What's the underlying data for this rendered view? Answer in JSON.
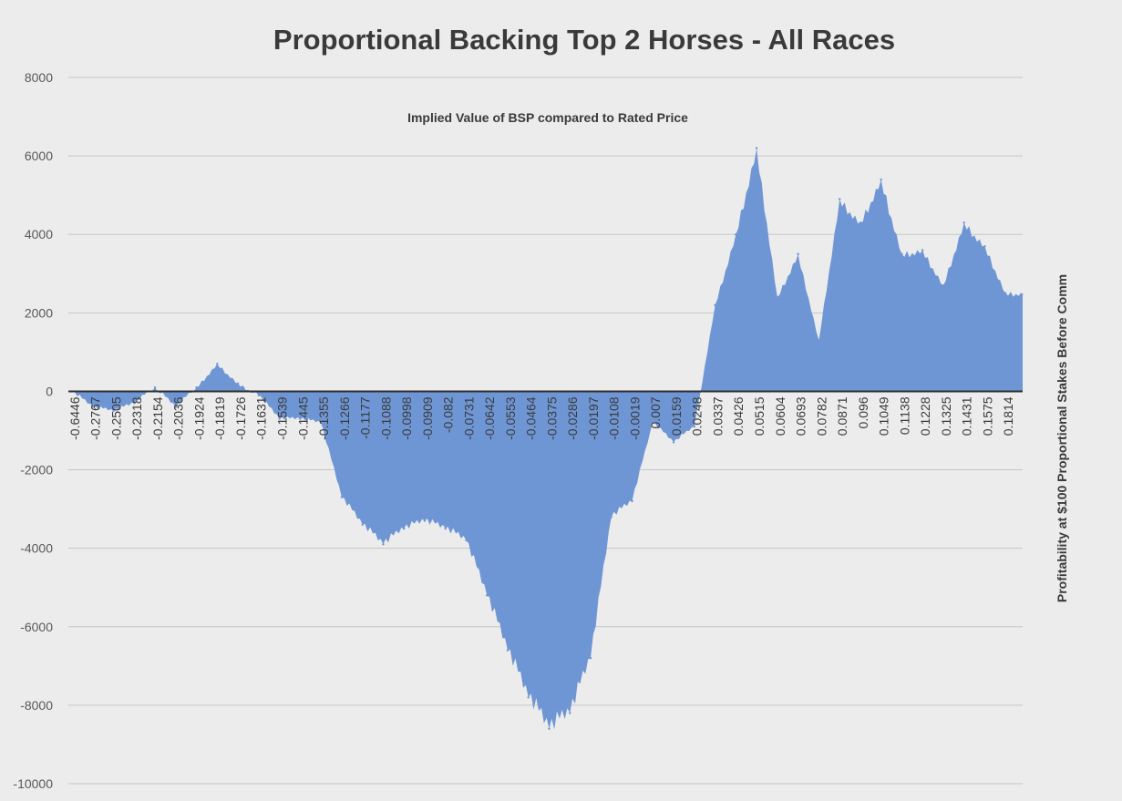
{
  "chart_data": {
    "type": "area",
    "title": "Proportional Backing Top 2 Horses - All Races",
    "subtitle": "Implied Value of BSP compared to Rated Price",
    "xlabel": "",
    "ylabel": "Profitability at $100 Proportional Stakes Before Comm",
    "ylim": [
      -10000,
      8000
    ],
    "y_ticks": [
      8000,
      6000,
      4000,
      2000,
      0,
      -2000,
      -4000,
      -6000,
      -8000,
      -10000
    ],
    "grid": true,
    "legend": "none",
    "x_tick_labels": [
      "-0.6446",
      "-0.2767",
      "-0.2505",
      "-0.2318",
      "-0.2154",
      "-0.2036",
      "-0.1924",
      "-0.1819",
      "-0.1726",
      "-0.1631",
      "-0.1539",
      "-0.1445",
      "-0.1355",
      "-0.1266",
      "-0.1177",
      "-0.1088",
      "-0.0998",
      "-0.0909",
      "-0.082",
      "-0.0731",
      "-0.0642",
      "-0.0553",
      "-0.0464",
      "-0.0375",
      "-0.0286",
      "-0.0197",
      "-0.0108",
      "-0.0019",
      "0.007",
      "0.0159",
      "0.0248",
      "0.0337",
      "0.0426",
      "0.0515",
      "0.0604",
      "0.0693",
      "0.0782",
      "0.0871",
      "0.096",
      "0.1049",
      "0.1138",
      "0.1228",
      "0.1325",
      "0.1431",
      "0.1575",
      "0.1814"
    ],
    "series": [
      {
        "color": "#6f96d4",
        "x": [
          "-0.6446",
          "-0.2767",
          "-0.2505",
          "-0.2318",
          "-0.2154",
          "-0.2036",
          "-0.1924",
          "-0.1819",
          "-0.1726",
          "-0.1631",
          "-0.1539",
          "-0.1445",
          "-0.1355",
          "-0.1266",
          "-0.1177",
          "-0.1088",
          "-0.0998",
          "-0.0909",
          "-0.082",
          "-0.0731",
          "-0.0642",
          "-0.0553",
          "-0.0464",
          "-0.0375",
          "-0.0286",
          "-0.0197",
          "-0.0108",
          "-0.0019",
          "0.007",
          "0.0159",
          "0.0248",
          "0.0337",
          "0.0426",
          "0.0515",
          "0.0604",
          "0.0693",
          "0.0782",
          "0.0871",
          "0.096",
          "0.1049",
          "0.1138",
          "0.1228",
          "0.1325",
          "0.1431",
          "0.1575",
          "0.1814"
        ],
        "values": [
          0,
          -400,
          -500,
          -300,
          100,
          -400,
          100,
          700,
          200,
          -100,
          -700,
          -700,
          -800,
          -2700,
          -3400,
          -3900,
          -3500,
          -3300,
          -3500,
          -3800,
          -5200,
          -6600,
          -7800,
          -8600,
          -8200,
          -6800,
          -3200,
          -2800,
          -800,
          -1300,
          -900,
          2200,
          4000,
          6200,
          2400,
          3500,
          1300,
          4900,
          4300,
          5400,
          3500,
          3600,
          2700,
          4300,
          3700,
          2500
        ]
      }
    ]
  }
}
